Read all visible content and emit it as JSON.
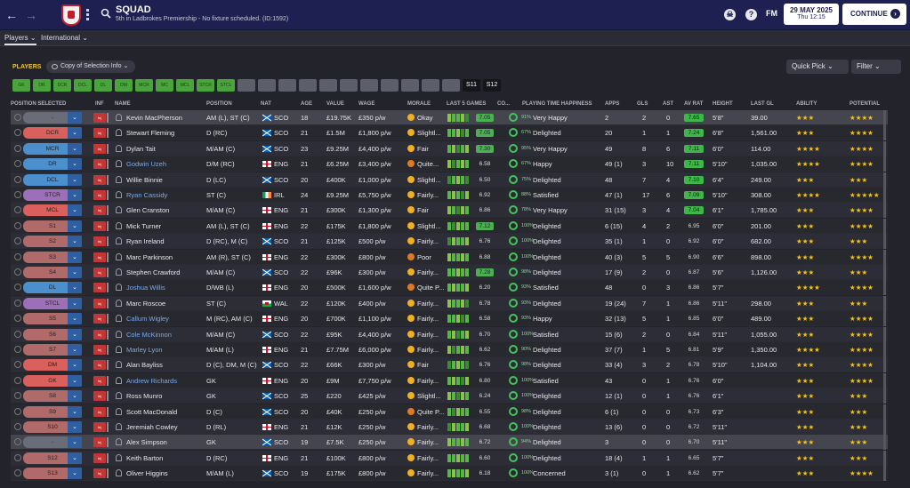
{
  "header": {
    "title": "SQUAD",
    "subtitle": "5th in Ladbrokes Premiership - No fixture scheduled. (ID:1592)",
    "date": "29 MAY 2025",
    "time": "Thu 12:15",
    "logo_text": "FM",
    "continue_label": "CONTINUE",
    "help_label": "?",
    "back_icon": "back-arrow-icon",
    "forward_icon": "forward-arrow-icon"
  },
  "subnav": {
    "players": "Players",
    "international": "International"
  },
  "toolbar": {
    "players_label": "PLAYERS",
    "view_label": "Copy of Selection Info",
    "quick_pick": "Quick Pick",
    "filter": "Filter"
  },
  "chips": [
    "GK",
    "DR",
    "DCR",
    "DCL",
    "DL",
    "DM",
    "MCR",
    "MC",
    "MCL",
    "STCR",
    "STCL",
    "",
    "",
    "",
    "",
    "",
    "",
    "",
    "",
    "",
    "",
    "",
    "S11",
    "S12"
  ],
  "columns": [
    "POSITION SELECTED",
    "INF",
    "NAME",
    "POSITION",
    "NAT",
    "AGE",
    "VALUE",
    "WAGE",
    "MORALE",
    "LAST 5 GAMES",
    "CO...",
    "PLAYING TIME HAPPINESS",
    "APPS",
    "GLS",
    "AST",
    "AV RAT",
    "HEIGHT",
    "LAST GL",
    "ABILITY",
    "POTENTIAL"
  ],
  "players": [
    {
      "pos": "-",
      "name": "Kevin MacPherson",
      "position": "AM (L), ST (C)",
      "nat": "SCO",
      "age": "18",
      "value": "£19.75K",
      "wage": "£350 p/w",
      "morale": "Okay",
      "form": "7.05",
      "cond": "91%",
      "happy": "Very Happy",
      "apps": "2",
      "gls": "2",
      "ast": "0",
      "avrat": "7.65",
      "height": "5'8\"",
      "lastgl": "39.00",
      "ability": "★★★",
      "potential": "★★★★"
    },
    {
      "pos": "DCR",
      "name": "Stewart Fleming",
      "position": "D (RC)",
      "nat": "SCO",
      "age": "21",
      "value": "£1.5M",
      "wage": "£1,800 p/w",
      "morale": "Slightl...",
      "form": "7.05",
      "cond": "67%",
      "happy": "Delighted",
      "apps": "20",
      "gls": "1",
      "ast": "1",
      "avrat": "7.24",
      "height": "6'8\"",
      "lastgl": "1,561.00",
      "ability": "★★★",
      "potential": "★★★★"
    },
    {
      "pos": "MCR",
      "name": "Dylan Tait",
      "position": "M/AM (C)",
      "nat": "SCO",
      "age": "23",
      "value": "£9.25M",
      "wage": "£4,400 p/w",
      "morale": "Fair",
      "form": "7.30",
      "cond": "95%",
      "happy": "Very Happy",
      "apps": "49",
      "gls": "8",
      "ast": "6",
      "avrat": "7.11",
      "height": "6'0\"",
      "lastgl": "114.00",
      "ability": "★★★★",
      "potential": "★★★★"
    },
    {
      "pos": "DR",
      "name": "Godwin Uzeh",
      "position": "D/M (RC)",
      "nat": "ENG",
      "age": "21",
      "value": "£6.25M",
      "wage": "£3,400 p/w",
      "morale": "Quite...",
      "form": "6.58",
      "cond": "67%",
      "happy": "Happy",
      "apps": "49 (1)",
      "gls": "3",
      "ast": "10",
      "avrat": "7.11",
      "height": "5'10\"",
      "lastgl": "1,035.00",
      "ability": "★★★★",
      "potential": "★★★★"
    },
    {
      "pos": "DCL",
      "name": "Willie Binnie",
      "position": "D (LC)",
      "nat": "SCO",
      "age": "20",
      "value": "£400K",
      "wage": "£1,000 p/w",
      "morale": "Slightl...",
      "form": "6.50",
      "cond": "75%",
      "happy": "Delighted",
      "apps": "48",
      "gls": "7",
      "ast": "4",
      "avrat": "7.10",
      "height": "6'4\"",
      "lastgl": "249.00",
      "ability": "★★★",
      "potential": "★★★"
    },
    {
      "pos": "STCR",
      "name": "Ryan Cassidy",
      "position": "ST (C)",
      "nat": "IRL",
      "age": "24",
      "value": "£9.25M",
      "wage": "£5,750 p/w",
      "morale": "Fairly...",
      "form": "6.92",
      "cond": "88%",
      "happy": "Satisfied",
      "apps": "47 (1)",
      "gls": "17",
      "ast": "6",
      "avrat": "7.09",
      "height": "5'10\"",
      "lastgl": "308.00",
      "ability": "★★★★",
      "potential": "★★★★★"
    },
    {
      "pos": "MCL",
      "name": "Glen Cranston",
      "position": "M/AM (C)",
      "nat": "ENG",
      "age": "21",
      "value": "£300K",
      "wage": "£1,300 p/w",
      "morale": "Fair",
      "form": "6.86",
      "cond": "78%",
      "happy": "Very Happy",
      "apps": "31 (15)",
      "gls": "3",
      "ast": "4",
      "avrat": "7.04",
      "height": "6'1\"",
      "lastgl": "1,785.00",
      "ability": "★★★",
      "potential": "★★★★"
    },
    {
      "pos": "S1",
      "name": "Mick Turner",
      "position": "AM (L), ST (C)",
      "nat": "ENG",
      "age": "22",
      "value": "£175K",
      "wage": "£1,800 p/w",
      "morale": "Slightl...",
      "form": "7.12",
      "cond": "100%",
      "happy": "Delighted",
      "apps": "6 (15)",
      "gls": "4",
      "ast": "2",
      "avrat": "6.95",
      "height": "6'0\"",
      "lastgl": "201.00",
      "ability": "★★★",
      "potential": "★★★★"
    },
    {
      "pos": "S2",
      "name": "Ryan Ireland",
      "position": "D (RC), M (C)",
      "nat": "SCO",
      "age": "21",
      "value": "£125K",
      "wage": "£500 p/w",
      "morale": "Fairly...",
      "form": "6.76",
      "cond": "100%",
      "happy": "Delighted",
      "apps": "35 (1)",
      "gls": "1",
      "ast": "0",
      "avrat": "6.92",
      "height": "6'0\"",
      "lastgl": "682.00",
      "ability": "★★★",
      "potential": "★★★"
    },
    {
      "pos": "S3",
      "name": "Marc Parkinson",
      "position": "AM (R), ST (C)",
      "nat": "ENG",
      "age": "22",
      "value": "£300K",
      "wage": "£800 p/w",
      "morale": "Poor",
      "form": "6.88",
      "cond": "100%",
      "happy": "Delighted",
      "apps": "40 (3)",
      "gls": "5",
      "ast": "5",
      "avrat": "6.90",
      "height": "6'6\"",
      "lastgl": "898.00",
      "ability": "★★★",
      "potential": "★★★★"
    },
    {
      "pos": "S4",
      "name": "Stephen Crawford",
      "position": "M/AM (C)",
      "nat": "SCO",
      "age": "22",
      "value": "£96K",
      "wage": "£300 p/w",
      "morale": "Fairly...",
      "form": "7.28",
      "cond": "98%",
      "happy": "Delighted",
      "apps": "17 (9)",
      "gls": "2",
      "ast": "0",
      "avrat": "6.87",
      "height": "5'6\"",
      "lastgl": "1,126.00",
      "ability": "★★★",
      "potential": "★★★"
    },
    {
      "pos": "DL",
      "name": "Joshua Willis",
      "position": "D/WB (L)",
      "nat": "ENG",
      "age": "20",
      "value": "£500K",
      "wage": "£1,600 p/w",
      "morale": "Quite P...",
      "form": "6.20",
      "cond": "93%",
      "happy": "Satisfied",
      "apps": "48",
      "gls": "0",
      "ast": "3",
      "avrat": "6.86",
      "height": "5'7\"",
      "lastgl": "",
      "ability": "★★★★",
      "potential": "★★★★"
    },
    {
      "pos": "STCL",
      "name": "Marc Roscoe",
      "position": "ST (C)",
      "nat": "WAL",
      "age": "22",
      "value": "£120K",
      "wage": "£400 p/w",
      "morale": "Fairly...",
      "form": "6.78",
      "cond": "93%",
      "happy": "Delighted",
      "apps": "19 (24)",
      "gls": "7",
      "ast": "1",
      "avrat": "6.86",
      "height": "5'11\"",
      "lastgl": "298.00",
      "ability": "★★★",
      "potential": "★★★"
    },
    {
      "pos": "S5",
      "name": "Callum Wigley",
      "position": "M (RC), AM (C)",
      "nat": "ENG",
      "age": "20",
      "value": "£700K",
      "wage": "£1,100 p/w",
      "morale": "Fairly...",
      "form": "6.58",
      "cond": "93%",
      "happy": "Happy",
      "apps": "32 (13)",
      "gls": "5",
      "ast": "1",
      "avrat": "6.85",
      "height": "6'0\"",
      "lastgl": "489.00",
      "ability": "★★★",
      "potential": "★★★★"
    },
    {
      "pos": "S6",
      "name": "Cole McKinnon",
      "position": "M/AM (C)",
      "nat": "SCO",
      "age": "22",
      "value": "£95K",
      "wage": "£4,400 p/w",
      "morale": "Fairly...",
      "form": "6.70",
      "cond": "100%",
      "happy": "Satisfied",
      "apps": "15 (6)",
      "gls": "2",
      "ast": "0",
      "avrat": "6.84",
      "height": "5'11\"",
      "lastgl": "1,055.00",
      "ability": "★★★",
      "potential": "★★★★"
    },
    {
      "pos": "S7",
      "name": "Marley Lyon",
      "position": "M/AM (L)",
      "nat": "ENG",
      "age": "21",
      "value": "£7.75M",
      "wage": "£6,000 p/w",
      "morale": "Fairly...",
      "form": "6.62",
      "cond": "90%",
      "happy": "Delighted",
      "apps": "37 (7)",
      "gls": "1",
      "ast": "5",
      "avrat": "6.81",
      "height": "5'9\"",
      "lastgl": "1,350.00",
      "ability": "★★★★",
      "potential": "★★★★"
    },
    {
      "pos": "DM",
      "name": "Alan Bayliss",
      "position": "D (C), DM, M (C)",
      "nat": "SCO",
      "age": "22",
      "value": "£66K",
      "wage": "£300 p/w",
      "morale": "Fair",
      "form": "6.76",
      "cond": "98%",
      "happy": "Delighted",
      "apps": "33 (4)",
      "gls": "3",
      "ast": "2",
      "avrat": "6.78",
      "height": "5'10\"",
      "lastgl": "1,104.00",
      "ability": "★★★",
      "potential": "★★★★"
    },
    {
      "pos": "GK",
      "name": "Andrew Richards",
      "position": "GK",
      "nat": "ENG",
      "age": "20",
      "value": "£9M",
      "wage": "£7,750 p/w",
      "morale": "Fairly...",
      "form": "6.80",
      "cond": "100%",
      "happy": "Satisfied",
      "apps": "43",
      "gls": "0",
      "ast": "1",
      "avrat": "6.76",
      "height": "6'0\"",
      "lastgl": "",
      "ability": "★★★",
      "potential": "★★★★"
    },
    {
      "pos": "S8",
      "name": "Ross Munro",
      "position": "GK",
      "nat": "SCO",
      "age": "25",
      "value": "£220",
      "wage": "£425 p/w",
      "morale": "Slightl...",
      "form": "6.24",
      "cond": "100%",
      "happy": "Delighted",
      "apps": "12 (1)",
      "gls": "0",
      "ast": "1",
      "avrat": "6.76",
      "height": "6'1\"",
      "lastgl": "",
      "ability": "★★★",
      "potential": "★★★"
    },
    {
      "pos": "S9",
      "name": "Scott MacDonald",
      "position": "D (C)",
      "nat": "SCO",
      "age": "20",
      "value": "£40K",
      "wage": "£250 p/w",
      "morale": "Quite P...",
      "form": "6.55",
      "cond": "98%",
      "happy": "Delighted",
      "apps": "6 (1)",
      "gls": "0",
      "ast": "0",
      "avrat": "6.73",
      "height": "6'3\"",
      "lastgl": "",
      "ability": "★★★",
      "potential": "★★★"
    },
    {
      "pos": "S10",
      "name": "Jeremiah Cowley",
      "position": "D (RL)",
      "nat": "ENG",
      "age": "21",
      "value": "£12K",
      "wage": "£250 p/w",
      "morale": "Fairly...",
      "form": "6.68",
      "cond": "100%",
      "happy": "Delighted",
      "apps": "13 (6)",
      "gls": "0",
      "ast": "0",
      "avrat": "6.72",
      "height": "5'11\"",
      "lastgl": "",
      "ability": "★★★",
      "potential": "★★★"
    },
    {
      "pos": "-",
      "name": "Alex Simpson",
      "position": "GK",
      "nat": "SCO",
      "age": "19",
      "value": "£7.5K",
      "wage": "£250 p/w",
      "morale": "Fairly...",
      "form": "6.72",
      "cond": "94%",
      "happy": "Delighted",
      "apps": "3",
      "gls": "0",
      "ast": "0",
      "avrat": "6.70",
      "height": "5'11\"",
      "lastgl": "",
      "ability": "★★★",
      "potential": "★★★"
    },
    {
      "pos": "S12",
      "name": "Keith Barton",
      "position": "D (RC)",
      "nat": "ENG",
      "age": "21",
      "value": "£100K",
      "wage": "£800 p/w",
      "morale": "Fairly...",
      "form": "6.60",
      "cond": "100%",
      "happy": "Delighted",
      "apps": "18 (4)",
      "gls": "1",
      "ast": "1",
      "avrat": "6.65",
      "height": "5'7\"",
      "lastgl": "",
      "ability": "★★★",
      "potential": "★★★"
    },
    {
      "pos": "S13",
      "name": "Oliver Higgins",
      "position": "M/AM (L)",
      "nat": "SCO",
      "age": "19",
      "value": "£175K",
      "wage": "£800 p/w",
      "morale": "Fairly...",
      "form": "6.18",
      "cond": "100%",
      "happy": "Concerned",
      "apps": "3 (1)",
      "gls": "0",
      "ast": "1",
      "avrat": "6.62",
      "height": "5'7\"",
      "lastgl": "",
      "ability": "★★★",
      "potential": "★★★★"
    }
  ]
}
